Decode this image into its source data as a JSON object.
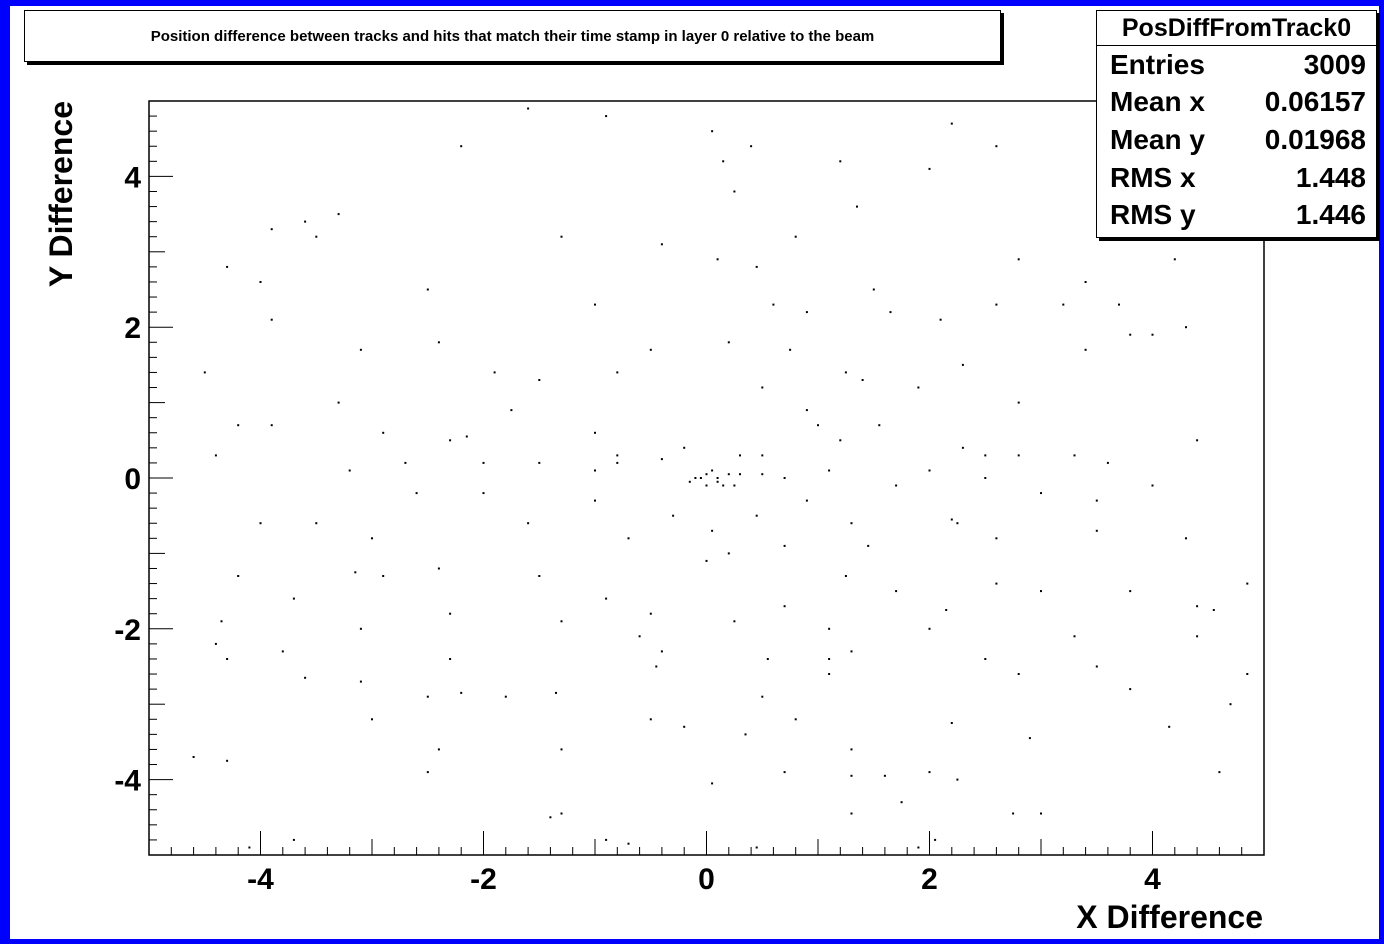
{
  "title": "Position difference between tracks and hits that match their time stamp in layer 0 relative to the beam",
  "stats": {
    "name": "PosDiffFromTrack0",
    "rows": [
      {
        "label": "Entries",
        "value": "3009"
      },
      {
        "label": "Mean x",
        "value": "0.06157"
      },
      {
        "label": "Mean y",
        "value": "0.01968"
      },
      {
        "label": "RMS x",
        "value": "1.448"
      },
      {
        "label": "RMS y",
        "value": "1.446"
      }
    ]
  },
  "chart_data": {
    "type": "scatter",
    "title": "Position difference between tracks and hits that match their time stamp in layer 0 relative to the beam",
    "xlabel": "X Difference",
    "ylabel": "Y Difference",
    "xlim": [
      -5,
      5
    ],
    "ylim": [
      -5,
      5
    ],
    "xticks": [
      -4,
      -2,
      0,
      2,
      4
    ],
    "yticks": [
      -4,
      -2,
      0,
      2,
      4
    ],
    "xtick_labels": [
      "-4",
      "-2",
      "0",
      "2",
      "4"
    ],
    "ytick_labels": [
      "-4",
      "-2",
      "0",
      "2",
      "4"
    ],
    "grid": false,
    "marker_color": "#000000",
    "points": [
      [
        -3.9,
        3.3
      ],
      [
        -4.3,
        2.8
      ],
      [
        -4.0,
        2.6
      ],
      [
        -3.6,
        3.4
      ],
      [
        -2.2,
        4.4
      ],
      [
        -1.6,
        4.9
      ],
      [
        -0.9,
        4.8
      ],
      [
        0.05,
        4.6
      ],
      [
        0.15,
        4.2
      ],
      [
        0.25,
        3.8
      ],
      [
        0.4,
        4.4
      ],
      [
        0.8,
        3.2
      ],
      [
        1.2,
        4.2
      ],
      [
        1.35,
        3.6
      ],
      [
        2.0,
        4.1
      ],
      [
        2.2,
        4.7
      ],
      [
        2.6,
        4.4
      ],
      [
        3.6,
        4.2
      ],
      [
        3.9,
        3.4
      ],
      [
        4.2,
        2.9
      ],
      [
        -3.5,
        3.2
      ],
      [
        -3.3,
        3.5
      ],
      [
        -2.5,
        2.5
      ],
      [
        -3.9,
        2.1
      ],
      [
        -1.3,
        3.2
      ],
      [
        -1.0,
        2.3
      ],
      [
        -0.4,
        3.1
      ],
      [
        0.1,
        2.9
      ],
      [
        0.45,
        2.8
      ],
      [
        0.6,
        2.3
      ],
      [
        0.9,
        2.2
      ],
      [
        1.5,
        2.5
      ],
      [
        1.65,
        2.2
      ],
      [
        2.1,
        2.1
      ],
      [
        2.6,
        2.3
      ],
      [
        2.8,
        2.9
      ],
      [
        3.4,
        2.6
      ],
      [
        3.7,
        2.3
      ],
      [
        4.3,
        2.0
      ],
      [
        3.2,
        2.3
      ],
      [
        -4.5,
        1.4
      ],
      [
        -3.1,
        1.7
      ],
      [
        -2.4,
        1.8
      ],
      [
        -1.9,
        1.4
      ],
      [
        -1.5,
        1.3
      ],
      [
        -0.8,
        1.4
      ],
      [
        -0.5,
        1.7
      ],
      [
        0.2,
        1.8
      ],
      [
        0.5,
        1.2
      ],
      [
        0.75,
        1.7
      ],
      [
        1.25,
        1.4
      ],
      [
        1.4,
        1.3
      ],
      [
        1.9,
        1.2
      ],
      [
        2.3,
        1.5
      ],
      [
        2.8,
        1.0
      ],
      [
        3.4,
        1.7
      ],
      [
        3.8,
        1.9
      ],
      [
        4.0,
        1.9
      ],
      [
        -3.3,
        1.0
      ],
      [
        -1.75,
        0.9
      ],
      [
        -4.2,
        0.7
      ],
      [
        -3.9,
        0.7
      ],
      [
        -2.9,
        0.6
      ],
      [
        -2.3,
        0.5
      ],
      [
        -2.15,
        0.55
      ],
      [
        -1.0,
        0.6
      ],
      [
        -0.8,
        0.3
      ],
      [
        -0.2,
        0.4
      ],
      [
        0.3,
        0.3
      ],
      [
        0.5,
        0.3
      ],
      [
        0.9,
        0.9
      ],
      [
        1.0,
        0.7
      ],
      [
        1.2,
        0.5
      ],
      [
        1.55,
        0.7
      ],
      [
        2.3,
        0.4
      ],
      [
        2.5,
        0.3
      ],
      [
        2.8,
        0.3
      ],
      [
        3.3,
        0.3
      ],
      [
        3.6,
        0.2
      ],
      [
        4.4,
        0.5
      ],
      [
        -4.4,
        0.3
      ],
      [
        -3.2,
        0.1
      ],
      [
        -2.7,
        0.2
      ],
      [
        -2.0,
        0.2
      ],
      [
        -1.5,
        0.2
      ],
      [
        -1.0,
        0.1
      ],
      [
        -0.8,
        0.2
      ],
      [
        -0.4,
        0.25
      ],
      [
        -0.1,
        0.0
      ],
      [
        0.0,
        0.05
      ],
      [
        0.1,
        -0.05
      ],
      [
        0.2,
        0.05
      ],
      [
        0.0,
        -0.1
      ],
      [
        0.05,
        0.1
      ],
      [
        -0.15,
        -0.05
      ],
      [
        0.15,
        -0.1
      ],
      [
        -0.05,
        0.0
      ],
      [
        0.1,
        0.0
      ],
      [
        0.25,
        -0.1
      ],
      [
        0.3,
        0.05
      ],
      [
        0.5,
        0.05
      ],
      [
        0.7,
        0.0
      ],
      [
        0.9,
        -0.3
      ],
      [
        1.1,
        0.1
      ],
      [
        1.7,
        -0.1
      ],
      [
        2.0,
        0.1
      ],
      [
        2.5,
        0.0
      ],
      [
        3.0,
        -0.2
      ],
      [
        3.5,
        -0.3
      ],
      [
        4.0,
        -0.1
      ],
      [
        -4.0,
        -0.6
      ],
      [
        -3.5,
        -0.6
      ],
      [
        -3.0,
        -0.8
      ],
      [
        -2.6,
        -0.2
      ],
      [
        -2.0,
        -0.2
      ],
      [
        -1.6,
        -0.6
      ],
      [
        -1.0,
        -0.3
      ],
      [
        -0.7,
        -0.8
      ],
      [
        -0.3,
        -0.5
      ],
      [
        0.05,
        -0.7
      ],
      [
        0.2,
        -1.0
      ],
      [
        0.45,
        -0.5
      ],
      [
        0.7,
        -0.9
      ],
      [
        1.3,
        -0.6
      ],
      [
        1.45,
        -0.9
      ],
      [
        2.2,
        -0.55
      ],
      [
        2.25,
        -0.6
      ],
      [
        2.6,
        -0.8
      ],
      [
        3.5,
        -0.7
      ],
      [
        4.3,
        -0.8
      ],
      [
        -4.2,
        -1.3
      ],
      [
        -3.7,
        -1.6
      ],
      [
        -3.15,
        -1.25
      ],
      [
        -2.9,
        -1.3
      ],
      [
        -2.4,
        -1.2
      ],
      [
        -1.5,
        -1.3
      ],
      [
        -0.9,
        -1.6
      ],
      [
        -0.5,
        -1.8
      ],
      [
        0.0,
        -1.1
      ],
      [
        0.7,
        -1.7
      ],
      [
        1.25,
        -1.3
      ],
      [
        1.7,
        -1.5
      ],
      [
        2.15,
        -1.75
      ],
      [
        2.6,
        -1.4
      ],
      [
        3.0,
        -1.5
      ],
      [
        3.8,
        -1.5
      ],
      [
        4.4,
        -1.7
      ],
      [
        4.55,
        -1.75
      ],
      [
        4.85,
        -1.4
      ],
      [
        -4.35,
        -1.9
      ],
      [
        -3.1,
        -2.0
      ],
      [
        -2.3,
        -1.8
      ],
      [
        -1.3,
        -1.9
      ],
      [
        -0.6,
        -2.1
      ],
      [
        -0.4,
        -2.3
      ],
      [
        0.25,
        -1.9
      ],
      [
        1.1,
        -2.0
      ],
      [
        1.3,
        -2.3
      ],
      [
        2.0,
        -2.0
      ],
      [
        3.3,
        -2.1
      ],
      [
        4.4,
        -2.1
      ],
      [
        -4.4,
        -2.2
      ],
      [
        -4.3,
        -2.4
      ],
      [
        -3.8,
        -2.3
      ],
      [
        -2.3,
        -2.4
      ],
      [
        -0.45,
        -2.5
      ],
      [
        0.55,
        -2.4
      ],
      [
        1.1,
        -2.4
      ],
      [
        2.5,
        -2.4
      ],
      [
        3.5,
        -2.5
      ],
      [
        -3.6,
        -2.65
      ],
      [
        -3.1,
        -2.7
      ],
      [
        -2.5,
        -2.9
      ],
      [
        -2.2,
        -2.85
      ],
      [
        -1.35,
        -2.85
      ],
      [
        -1.8,
        -2.9
      ],
      [
        0.5,
        -2.9
      ],
      [
        1.1,
        -2.6
      ],
      [
        2.8,
        -2.6
      ],
      [
        3.8,
        -2.8
      ],
      [
        4.85,
        -2.6
      ],
      [
        -4.6,
        -3.7
      ],
      [
        -3.0,
        -3.2
      ],
      [
        -2.4,
        -3.6
      ],
      [
        -1.3,
        -3.6
      ],
      [
        -0.5,
        -3.2
      ],
      [
        -0.2,
        -3.3
      ],
      [
        0.35,
        -3.4
      ],
      [
        0.8,
        -3.2
      ],
      [
        1.3,
        -3.6
      ],
      [
        2.2,
        -3.25
      ],
      [
        2.9,
        -3.45
      ],
      [
        4.15,
        -3.3
      ],
      [
        4.7,
        -3.0
      ],
      [
        -4.3,
        -3.75
      ],
      [
        -2.5,
        -3.9
      ],
      [
        -1.3,
        -4.45
      ],
      [
        -0.7,
        -4.85
      ],
      [
        0.05,
        -4.05
      ],
      [
        0.7,
        -3.9
      ],
      [
        1.3,
        -3.95
      ],
      [
        1.6,
        -3.95
      ],
      [
        1.75,
        -4.3
      ],
      [
        2.0,
        -3.9
      ],
      [
        2.25,
        -4.0
      ],
      [
        2.75,
        -4.45
      ],
      [
        3.0,
        -4.45
      ],
      [
        4.6,
        -3.9
      ],
      [
        -4.1,
        -4.9
      ],
      [
        -3.7,
        -4.8
      ],
      [
        -0.9,
        -4.8
      ],
      [
        0.45,
        -4.9
      ],
      [
        1.9,
        -4.9
      ],
      [
        2.05,
        -4.8
      ],
      [
        1.3,
        -4.45
      ],
      [
        -1.4,
        -4.5
      ]
    ]
  }
}
